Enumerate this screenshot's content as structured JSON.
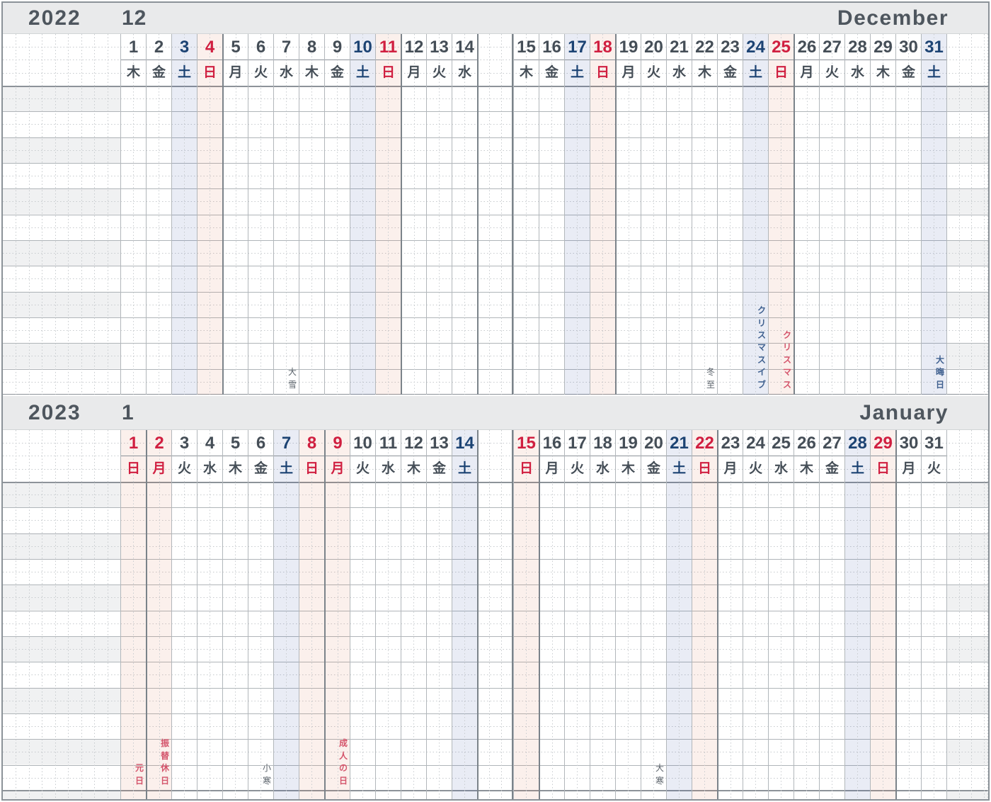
{
  "colors": {
    "header_bg": "#e9eaeb",
    "header_text": "#4e565e",
    "weekday_text": "#454e57",
    "saturday_text": "#1c4373",
    "sunday_text": "#d01f40",
    "saturday_column_tint": "#e9ecf4",
    "sunday_column_tint": "#fbf1ec",
    "margin_stripe": "#f0f1f2",
    "grid_line": "#b0b5b9",
    "week_boundary_line": "#7b838a",
    "annotation_gray": "#5b636b",
    "annotation_blue": "#3f608f",
    "annotation_red": "#d4546b"
  },
  "months": [
    {
      "year": "2022",
      "month_number": "12",
      "month_name": "December",
      "days": [
        {
          "num": "1",
          "dow": "木",
          "type": "weekday"
        },
        {
          "num": "2",
          "dow": "金",
          "type": "weekday"
        },
        {
          "num": "3",
          "dow": "土",
          "type": "saturday"
        },
        {
          "num": "4",
          "dow": "日",
          "type": "sunday"
        },
        {
          "num": "5",
          "dow": "月",
          "type": "weekday"
        },
        {
          "num": "6",
          "dow": "火",
          "type": "weekday"
        },
        {
          "num": "7",
          "dow": "水",
          "type": "weekday"
        },
        {
          "num": "8",
          "dow": "木",
          "type": "weekday"
        },
        {
          "num": "9",
          "dow": "金",
          "type": "weekday"
        },
        {
          "num": "10",
          "dow": "土",
          "type": "saturday"
        },
        {
          "num": "11",
          "dow": "日",
          "type": "sunday"
        },
        {
          "num": "12",
          "dow": "月",
          "type": "weekday"
        },
        {
          "num": "13",
          "dow": "火",
          "type": "weekday"
        },
        {
          "num": "14",
          "dow": "水",
          "type": "weekday"
        },
        {
          "num": "15",
          "dow": "木",
          "type": "weekday"
        },
        {
          "num": "16",
          "dow": "金",
          "type": "weekday"
        },
        {
          "num": "17",
          "dow": "土",
          "type": "saturday"
        },
        {
          "num": "18",
          "dow": "日",
          "type": "sunday"
        },
        {
          "num": "19",
          "dow": "月",
          "type": "weekday"
        },
        {
          "num": "20",
          "dow": "火",
          "type": "weekday"
        },
        {
          "num": "21",
          "dow": "水",
          "type": "weekday"
        },
        {
          "num": "22",
          "dow": "木",
          "type": "weekday"
        },
        {
          "num": "23",
          "dow": "金",
          "type": "weekday"
        },
        {
          "num": "24",
          "dow": "土",
          "type": "saturday"
        },
        {
          "num": "25",
          "dow": "日",
          "type": "sunday"
        },
        {
          "num": "26",
          "dow": "月",
          "type": "weekday"
        },
        {
          "num": "27",
          "dow": "火",
          "type": "weekday"
        },
        {
          "num": "28",
          "dow": "水",
          "type": "weekday"
        },
        {
          "num": "29",
          "dow": "木",
          "type": "weekday"
        },
        {
          "num": "30",
          "dow": "金",
          "type": "weekday"
        },
        {
          "num": "31",
          "dow": "土",
          "type": "saturday"
        }
      ],
      "annotations": [
        {
          "day": 7,
          "text": "大雪",
          "color": "gray"
        },
        {
          "day": 22,
          "text": "冬至",
          "color": "gray"
        },
        {
          "day": 24,
          "text": "クリスマスイブ",
          "color": "blue"
        },
        {
          "day": 25,
          "text": "クリスマス",
          "color": "red"
        },
        {
          "day": 31,
          "text": "大晦日",
          "color": "blue"
        }
      ]
    },
    {
      "year": "2023",
      "month_number": "1",
      "month_name": "January",
      "days": [
        {
          "num": "1",
          "dow": "日",
          "type": "sunday"
        },
        {
          "num": "2",
          "dow": "月",
          "type": "holiday"
        },
        {
          "num": "3",
          "dow": "火",
          "type": "weekday"
        },
        {
          "num": "4",
          "dow": "水",
          "type": "weekday"
        },
        {
          "num": "5",
          "dow": "木",
          "type": "weekday"
        },
        {
          "num": "6",
          "dow": "金",
          "type": "weekday"
        },
        {
          "num": "7",
          "dow": "土",
          "type": "saturday"
        },
        {
          "num": "8",
          "dow": "日",
          "type": "sunday"
        },
        {
          "num": "9",
          "dow": "月",
          "type": "holiday"
        },
        {
          "num": "10",
          "dow": "火",
          "type": "weekday"
        },
        {
          "num": "11",
          "dow": "水",
          "type": "weekday"
        },
        {
          "num": "12",
          "dow": "木",
          "type": "weekday"
        },
        {
          "num": "13",
          "dow": "金",
          "type": "weekday"
        },
        {
          "num": "14",
          "dow": "土",
          "type": "saturday"
        },
        {
          "num": "15",
          "dow": "日",
          "type": "sunday"
        },
        {
          "num": "16",
          "dow": "月",
          "type": "weekday"
        },
        {
          "num": "17",
          "dow": "火",
          "type": "weekday"
        },
        {
          "num": "18",
          "dow": "水",
          "type": "weekday"
        },
        {
          "num": "19",
          "dow": "木",
          "type": "weekday"
        },
        {
          "num": "20",
          "dow": "金",
          "type": "weekday"
        },
        {
          "num": "21",
          "dow": "土",
          "type": "saturday"
        },
        {
          "num": "22",
          "dow": "日",
          "type": "sunday"
        },
        {
          "num": "23",
          "dow": "月",
          "type": "weekday"
        },
        {
          "num": "24",
          "dow": "火",
          "type": "weekday"
        },
        {
          "num": "25",
          "dow": "水",
          "type": "weekday"
        },
        {
          "num": "26",
          "dow": "木",
          "type": "weekday"
        },
        {
          "num": "27",
          "dow": "金",
          "type": "weekday"
        },
        {
          "num": "28",
          "dow": "土",
          "type": "saturday"
        },
        {
          "num": "29",
          "dow": "日",
          "type": "sunday"
        },
        {
          "num": "30",
          "dow": "月",
          "type": "weekday"
        },
        {
          "num": "31",
          "dow": "火",
          "type": "weekday"
        }
      ],
      "annotations": [
        {
          "day": 1,
          "text": "元日",
          "color": "red"
        },
        {
          "day": 2,
          "text": "振替休日",
          "color": "red"
        },
        {
          "day": 6,
          "text": "小寒",
          "color": "gray"
        },
        {
          "day": 9,
          "text": "成人の日",
          "color": "red"
        },
        {
          "day": 20,
          "text": "大寒",
          "color": "gray"
        }
      ]
    }
  ]
}
